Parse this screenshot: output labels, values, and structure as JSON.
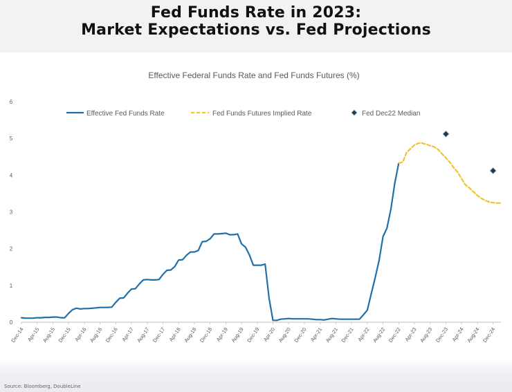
{
  "page": {
    "title_line1": "Fed Funds Rate in 2023:",
    "title_line2": "Market Expectations vs. Fed Projections",
    "source": "Source: Bloomberg, DoubleLine"
  },
  "chart_data": {
    "type": "line",
    "title": "Effective Federal Funds Rate and Fed Funds Futures (%)",
    "xlabel": "",
    "ylabel": "",
    "ylim": [
      0,
      6
    ],
    "yticks": [
      0,
      1,
      2,
      3,
      4,
      5,
      6
    ],
    "x_ticks": [
      "Dec-14",
      "Apr-15",
      "Aug-15",
      "Dec-15",
      "Apr-16",
      "Aug-16",
      "Dec-16",
      "Apr-17",
      "Aug-17",
      "Dec-17",
      "Apr-18",
      "Aug-18",
      "Dec-18",
      "Apr-19",
      "Aug-19",
      "Dec-19",
      "Apr-20",
      "Aug-20",
      "Dec-20",
      "Apr-21",
      "Aug-21",
      "Dec-21",
      "Apr-22",
      "Aug-22",
      "Dec-22",
      "Apr-23",
      "Aug-23",
      "Dec-23",
      "Apr-24",
      "Aug-24",
      "Dec-24"
    ],
    "grid": false,
    "legend": "top",
    "colors": {
      "effective": "#1f6fa8",
      "futures": "#f2c230",
      "median": "#1e3a4c",
      "axis": "#bfbfbf",
      "text": "#595959"
    },
    "series": [
      {
        "name": "Effective Fed Funds Rate",
        "style": "solid",
        "points": [
          [
            "Dec-14",
            0.12
          ],
          [
            "Jan-15",
            0.11
          ],
          [
            "Feb-15",
            0.11
          ],
          [
            "Mar-15",
            0.11
          ],
          [
            "Apr-15",
            0.12
          ],
          [
            "May-15",
            0.12
          ],
          [
            "Jun-15",
            0.13
          ],
          [
            "Jul-15",
            0.13
          ],
          [
            "Aug-15",
            0.14
          ],
          [
            "Sep-15",
            0.14
          ],
          [
            "Oct-15",
            0.12
          ],
          [
            "Nov-15",
            0.12
          ],
          [
            "Dec-15",
            0.24
          ],
          [
            "Jan-16",
            0.34
          ],
          [
            "Feb-16",
            0.38
          ],
          [
            "Mar-16",
            0.36
          ],
          [
            "Apr-16",
            0.37
          ],
          [
            "May-16",
            0.37
          ],
          [
            "Jun-16",
            0.38
          ],
          [
            "Jul-16",
            0.39
          ],
          [
            "Aug-16",
            0.4
          ],
          [
            "Sep-16",
            0.4
          ],
          [
            "Oct-16",
            0.4
          ],
          [
            "Nov-16",
            0.41
          ],
          [
            "Dec-16",
            0.54
          ],
          [
            "Jan-17",
            0.65
          ],
          [
            "Feb-17",
            0.66
          ],
          [
            "Mar-17",
            0.79
          ],
          [
            "Apr-17",
            0.9
          ],
          [
            "May-17",
            0.91
          ],
          [
            "Jun-17",
            1.04
          ],
          [
            "Jul-17",
            1.15
          ],
          [
            "Aug-17",
            1.16
          ],
          [
            "Sep-17",
            1.15
          ],
          [
            "Oct-17",
            1.15
          ],
          [
            "Nov-17",
            1.16
          ],
          [
            "Dec-17",
            1.3
          ],
          [
            "Jan-18",
            1.41
          ],
          [
            "Feb-18",
            1.42
          ],
          [
            "Mar-18",
            1.51
          ],
          [
            "Apr-18",
            1.69
          ],
          [
            "May-18",
            1.7
          ],
          [
            "Jun-18",
            1.82
          ],
          [
            "Jul-18",
            1.91
          ],
          [
            "Aug-18",
            1.91
          ],
          [
            "Sep-18",
            1.95
          ],
          [
            "Oct-18",
            2.19
          ],
          [
            "Nov-18",
            2.2
          ],
          [
            "Dec-18",
            2.27
          ],
          [
            "Jan-19",
            2.4
          ],
          [
            "Feb-19",
            2.4
          ],
          [
            "Mar-19",
            2.41
          ],
          [
            "Apr-19",
            2.42
          ],
          [
            "May-19",
            2.38
          ],
          [
            "Jun-19",
            2.38
          ],
          [
            "Jul-19",
            2.4
          ],
          [
            "Aug-19",
            2.13
          ],
          [
            "Sep-19",
            2.04
          ],
          [
            "Oct-19",
            1.83
          ],
          [
            "Nov-19",
            1.55
          ],
          [
            "Dec-19",
            1.55
          ],
          [
            "Jan-20",
            1.55
          ],
          [
            "Feb-20",
            1.58
          ],
          [
            "Mar-20",
            0.65
          ],
          [
            "Apr-20",
            0.05
          ],
          [
            "May-20",
            0.05
          ],
          [
            "Jun-20",
            0.08
          ],
          [
            "Jul-20",
            0.09
          ],
          [
            "Aug-20",
            0.1
          ],
          [
            "Sep-20",
            0.09
          ],
          [
            "Oct-20",
            0.09
          ],
          [
            "Nov-20",
            0.09
          ],
          [
            "Dec-20",
            0.09
          ],
          [
            "Jan-21",
            0.09
          ],
          [
            "Feb-21",
            0.08
          ],
          [
            "Mar-21",
            0.07
          ],
          [
            "Apr-21",
            0.07
          ],
          [
            "May-21",
            0.06
          ],
          [
            "Jun-21",
            0.08
          ],
          [
            "Jul-21",
            0.1
          ],
          [
            "Aug-21",
            0.09
          ],
          [
            "Sep-21",
            0.08
          ],
          [
            "Oct-21",
            0.08
          ],
          [
            "Nov-21",
            0.08
          ],
          [
            "Dec-21",
            0.08
          ],
          [
            "Jan-22",
            0.08
          ],
          [
            "Feb-22",
            0.08
          ],
          [
            "Mar-22",
            0.2
          ],
          [
            "Apr-22",
            0.33
          ],
          [
            "May-22",
            0.77
          ],
          [
            "Jun-22",
            1.21
          ],
          [
            "Jul-22",
            1.68
          ],
          [
            "Aug-22",
            2.33
          ],
          [
            "Sep-22",
            2.56
          ],
          [
            "Oct-22",
            3.08
          ],
          [
            "Nov-22",
            3.78
          ],
          [
            "Dec-22",
            4.33
          ]
        ]
      },
      {
        "name": "Fed Funds Futures Implied Rate",
        "style": "dashed",
        "points": [
          [
            "Dec-22",
            4.33
          ],
          [
            "Jan-23",
            4.35
          ],
          [
            "Feb-23",
            4.62
          ],
          [
            "Mar-23",
            4.72
          ],
          [
            "Apr-23",
            4.82
          ],
          [
            "May-23",
            4.87
          ],
          [
            "Jun-23",
            4.87
          ],
          [
            "Jul-23",
            4.84
          ],
          [
            "Aug-23",
            4.8
          ],
          [
            "Sep-23",
            4.77
          ],
          [
            "Oct-23",
            4.7
          ],
          [
            "Nov-23",
            4.58
          ],
          [
            "Dec-23",
            4.47
          ],
          [
            "Jan-24",
            4.35
          ],
          [
            "Feb-24",
            4.2
          ],
          [
            "Mar-24",
            4.08
          ],
          [
            "Apr-24",
            3.9
          ],
          [
            "May-24",
            3.73
          ],
          [
            "Jun-24",
            3.65
          ],
          [
            "Jul-24",
            3.55
          ],
          [
            "Aug-24",
            3.45
          ],
          [
            "Sep-24",
            3.37
          ],
          [
            "Oct-24",
            3.31
          ],
          [
            "Nov-24",
            3.27
          ],
          [
            "Dec-24",
            3.25
          ],
          [
            "Jan-25",
            3.24
          ],
          [
            "Feb-25",
            3.24
          ]
        ]
      },
      {
        "name": "Fed Dec22 Median",
        "style": "marker",
        "points": [
          [
            "Dec-23",
            5.12
          ],
          [
            "Dec-24",
            4.12
          ]
        ]
      }
    ]
  }
}
